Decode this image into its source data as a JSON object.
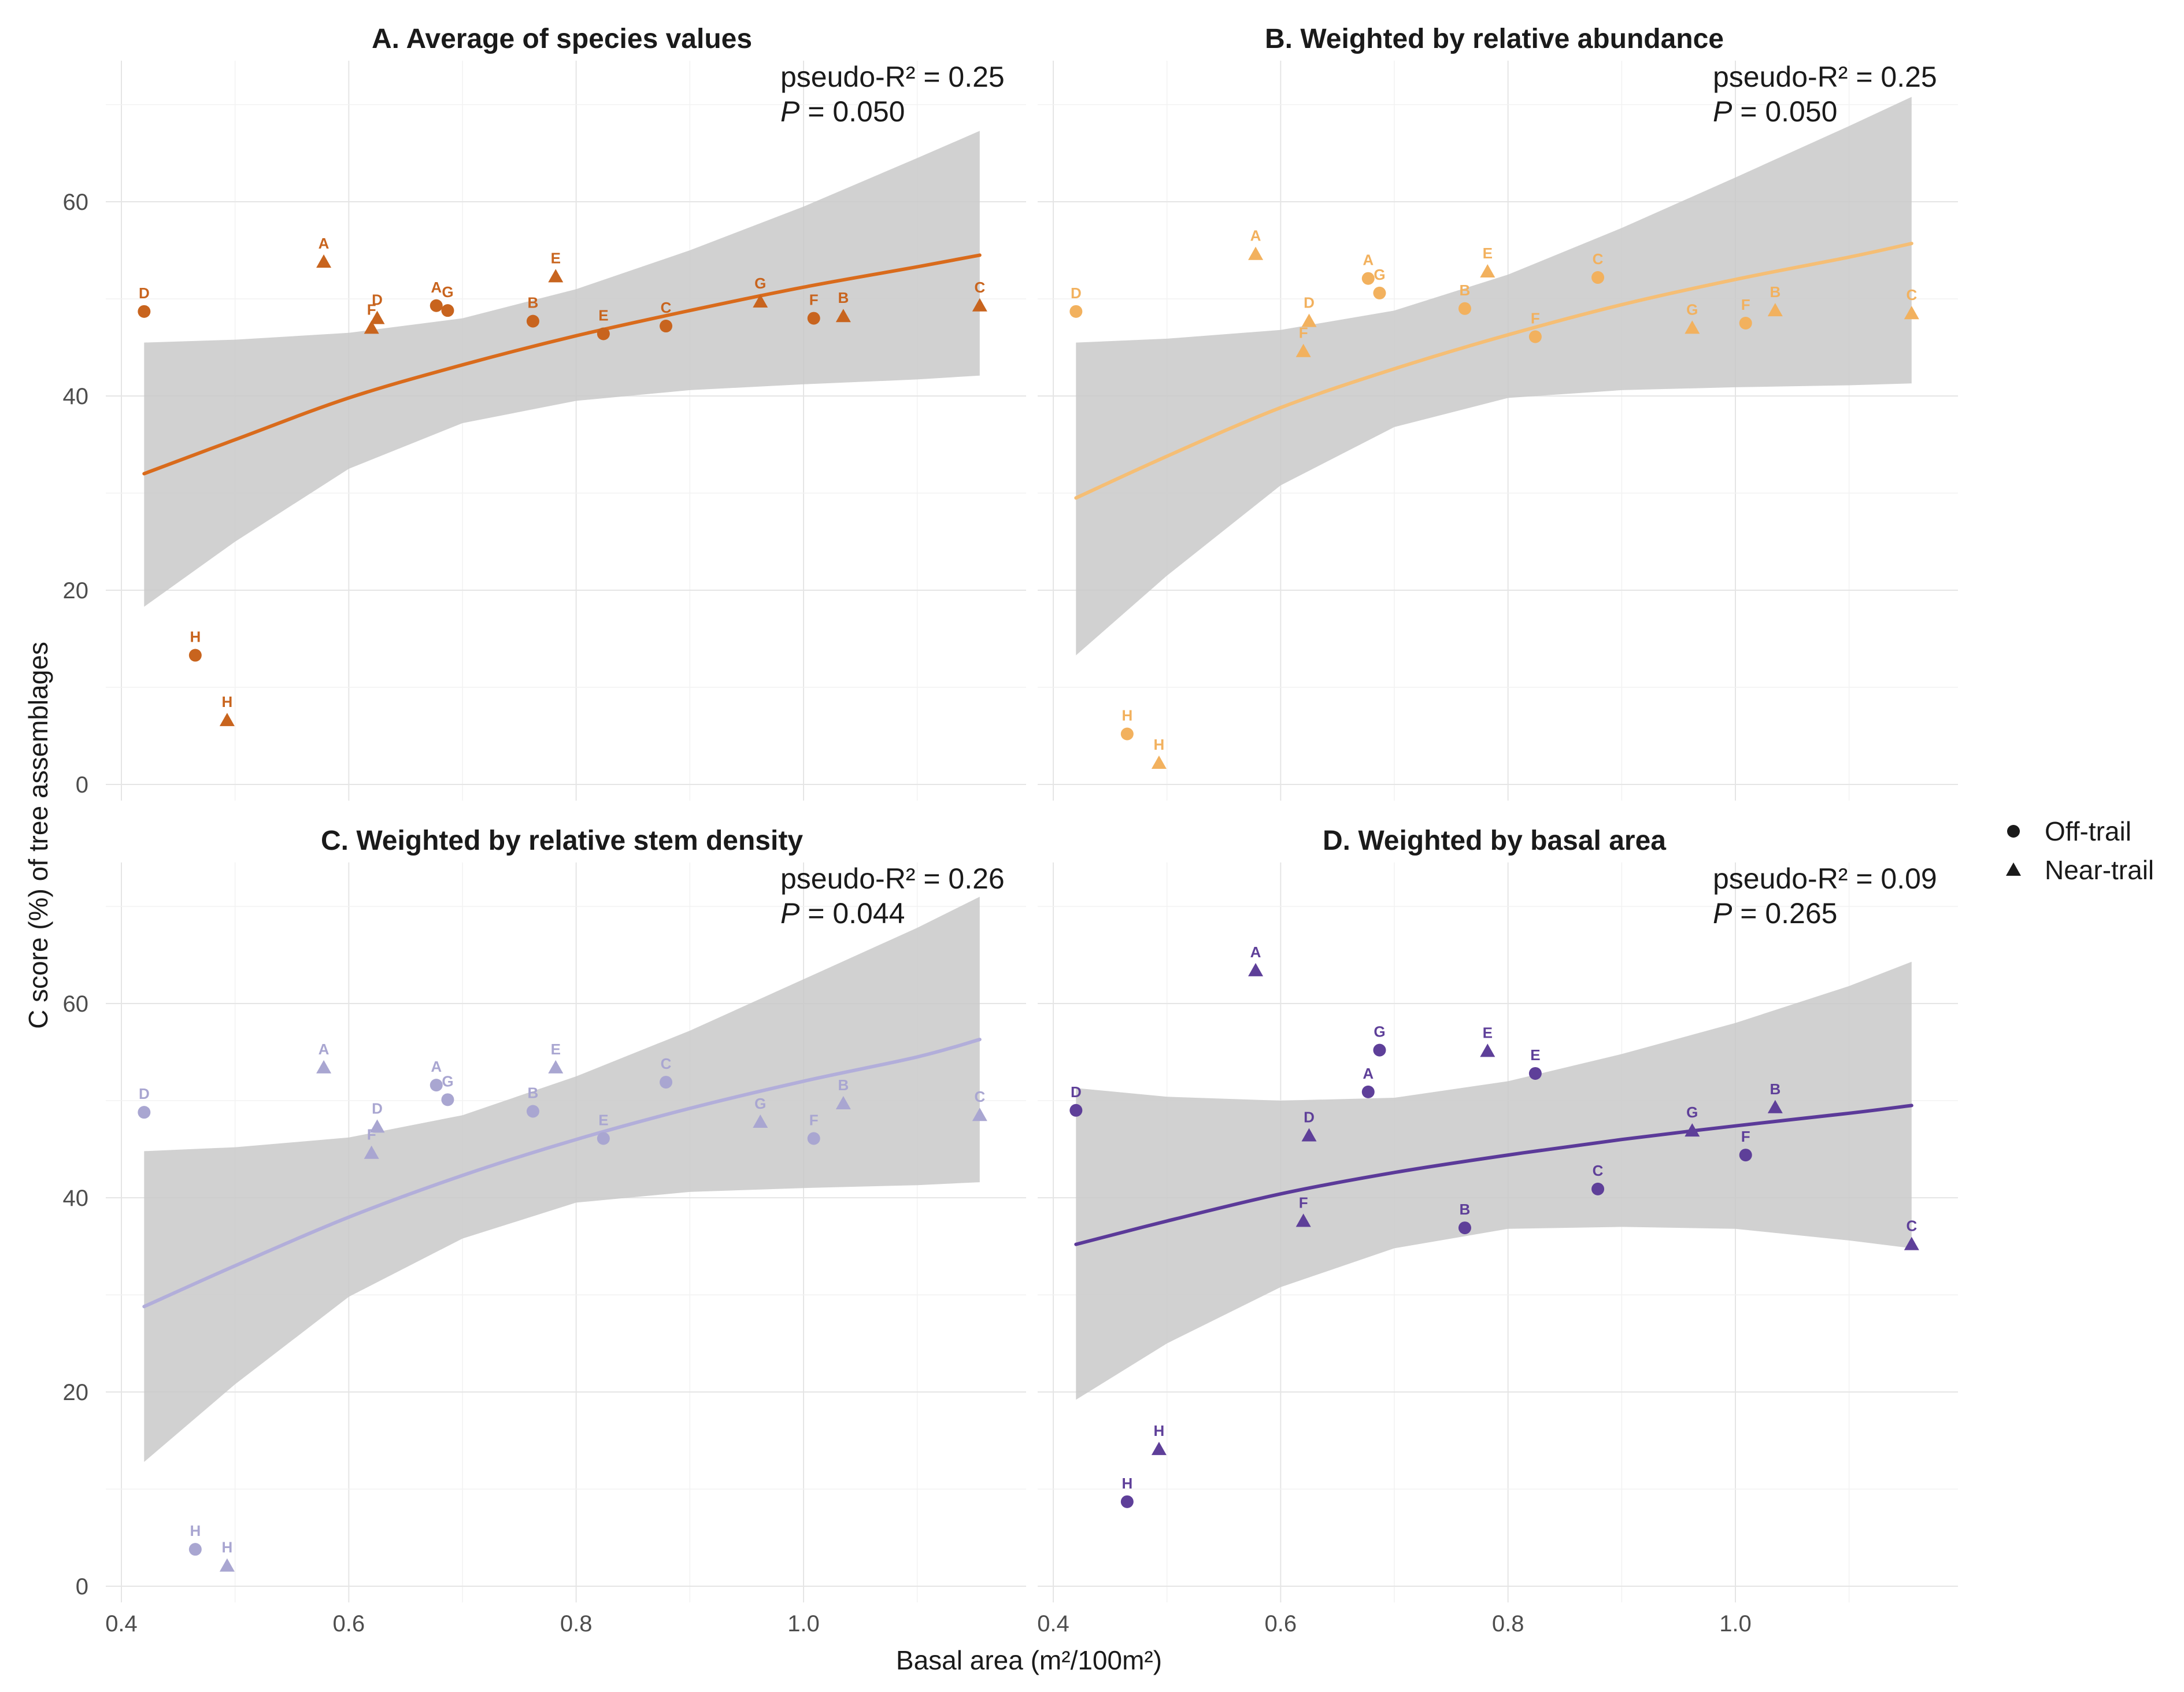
{
  "chart_data": {
    "type": "scatter",
    "xlabel": "Basal area (m²/100m²)",
    "ylabel": "C score (%) of tree assemblages",
    "xlim": [
      0.38,
      1.2
    ],
    "ylim": [
      -3,
      72
    ],
    "x_ticks": [
      "0.4",
      "0.6",
      "0.8",
      "1.0"
    ],
    "y_ticks": [
      "0",
      "20",
      "40",
      "60"
    ],
    "x_tick_values": [
      0.4,
      0.6,
      0.8,
      1.0
    ],
    "y_tick_values": [
      0,
      20,
      40,
      60
    ],
    "legend": {
      "position": "right",
      "items": [
        {
          "label": "Off-trail",
          "shape": "circle"
        },
        {
          "label": "Near-trail",
          "shape": "triangle"
        }
      ]
    },
    "panels": [
      {
        "title": "A. Average of species values",
        "r2_text": "pseudo-R² = 0.25",
        "p_label": "P",
        "p_value": " = 0.050",
        "color": "#C8641E",
        "line_color": "#D96B1C",
        "fit": [
          [
            0.42,
            32
          ],
          [
            0.5,
            35.5
          ],
          [
            0.6,
            39.8
          ],
          [
            0.7,
            43.2
          ],
          [
            0.8,
            46.2
          ],
          [
            0.9,
            48.8
          ],
          [
            1.0,
            51.2
          ],
          [
            1.1,
            53.3
          ],
          [
            1.155,
            54.5
          ]
        ],
        "band_upper": [
          [
            0.42,
            45.5
          ],
          [
            0.5,
            45.8
          ],
          [
            0.6,
            46.5
          ],
          [
            0.7,
            48.0
          ],
          [
            0.8,
            51.0
          ],
          [
            0.9,
            55.0
          ],
          [
            1.0,
            59.5
          ],
          [
            1.1,
            64.5
          ],
          [
            1.155,
            67.3
          ]
        ],
        "band_lower": [
          [
            0.42,
            18.3
          ],
          [
            0.5,
            25.0
          ],
          [
            0.6,
            32.5
          ],
          [
            0.7,
            37.2
          ],
          [
            0.8,
            39.5
          ],
          [
            0.9,
            40.6
          ],
          [
            1.0,
            41.2
          ],
          [
            1.1,
            41.7
          ],
          [
            1.155,
            42.1
          ]
        ],
        "points": [
          {
            "label": "D",
            "x": 0.42,
            "y": 48.7,
            "shape": "circle"
          },
          {
            "label": "A",
            "x": 0.578,
            "y": 53.8,
            "shape": "triangle"
          },
          {
            "label": "D",
            "x": 0.625,
            "y": 48.0,
            "shape": "triangle"
          },
          {
            "label": "F",
            "x": 0.62,
            "y": 47.0,
            "shape": "triangle"
          },
          {
            "label": "A",
            "x": 0.677,
            "y": 49.3,
            "shape": "circle"
          },
          {
            "label": "G",
            "x": 0.687,
            "y": 48.8,
            "shape": "circle"
          },
          {
            "label": "B",
            "x": 0.762,
            "y": 47.7,
            "shape": "circle"
          },
          {
            "label": "E",
            "x": 0.782,
            "y": 52.3,
            "shape": "triangle"
          },
          {
            "label": "E",
            "x": 0.824,
            "y": 46.4,
            "shape": "circle"
          },
          {
            "label": "C",
            "x": 0.879,
            "y": 47.2,
            "shape": "circle"
          },
          {
            "label": "G",
            "x": 0.962,
            "y": 49.7,
            "shape": "triangle"
          },
          {
            "label": "F",
            "x": 1.009,
            "y": 48.0,
            "shape": "circle"
          },
          {
            "label": "B",
            "x": 1.035,
            "y": 48.2,
            "shape": "triangle"
          },
          {
            "label": "C",
            "x": 1.155,
            "y": 49.3,
            "shape": "triangle"
          },
          {
            "label": "H",
            "x": 0.465,
            "y": 13.3,
            "shape": "circle"
          },
          {
            "label": "H",
            "x": 0.493,
            "y": 6.6,
            "shape": "triangle"
          }
        ]
      },
      {
        "title": "B. Weighted by relative abundance",
        "r2_text": "pseudo-R² = 0.25",
        "p_label": "P",
        "p_value": " = 0.050",
        "color": "#F2B15E",
        "line_color": "#F5BE75",
        "fit": [
          [
            0.42,
            29.5
          ],
          [
            0.5,
            33.8
          ],
          [
            0.6,
            38.8
          ],
          [
            0.7,
            42.8
          ],
          [
            0.8,
            46.3
          ],
          [
            0.9,
            49.4
          ],
          [
            1.0,
            52.0
          ],
          [
            1.1,
            54.3
          ],
          [
            1.155,
            55.7
          ]
        ],
        "band_upper": [
          [
            0.42,
            45.5
          ],
          [
            0.5,
            45.9
          ],
          [
            0.6,
            46.8
          ],
          [
            0.7,
            48.8
          ],
          [
            0.8,
            52.5
          ],
          [
            0.9,
            57.3
          ],
          [
            1.0,
            62.5
          ],
          [
            1.1,
            67.8
          ],
          [
            1.155,
            70.8
          ]
        ],
        "band_lower": [
          [
            0.42,
            13.3
          ],
          [
            0.5,
            21.5
          ],
          [
            0.6,
            30.8
          ],
          [
            0.7,
            36.8
          ],
          [
            0.8,
            39.8
          ],
          [
            0.9,
            40.6
          ],
          [
            1.0,
            40.9
          ],
          [
            1.1,
            41.1
          ],
          [
            1.155,
            41.3
          ]
        ],
        "points": [
          {
            "label": "D",
            "x": 0.42,
            "y": 48.7,
            "shape": "circle"
          },
          {
            "label": "A",
            "x": 0.578,
            "y": 54.6,
            "shape": "triangle"
          },
          {
            "label": "D",
            "x": 0.625,
            "y": 47.7,
            "shape": "triangle"
          },
          {
            "label": "F",
            "x": 0.62,
            "y": 44.6,
            "shape": "triangle"
          },
          {
            "label": "A",
            "x": 0.677,
            "y": 52.1,
            "shape": "circle"
          },
          {
            "label": "G",
            "x": 0.687,
            "y": 50.6,
            "shape": "circle"
          },
          {
            "label": "B",
            "x": 0.762,
            "y": 49.0,
            "shape": "circle"
          },
          {
            "label": "E",
            "x": 0.782,
            "y": 52.8,
            "shape": "triangle"
          },
          {
            "label": "F",
            "x": 0.824,
            "y": 46.1,
            "shape": "circle"
          },
          {
            "label": "C",
            "x": 0.879,
            "y": 52.2,
            "shape": "circle"
          },
          {
            "label": "G",
            "x": 0.962,
            "y": 47.0,
            "shape": "triangle"
          },
          {
            "label": "F",
            "x": 1.009,
            "y": 47.5,
            "shape": "circle"
          },
          {
            "label": "B",
            "x": 1.035,
            "y": 48.8,
            "shape": "triangle"
          },
          {
            "label": "C",
            "x": 1.155,
            "y": 48.5,
            "shape": "triangle"
          },
          {
            "label": "H",
            "x": 0.465,
            "y": 5.2,
            "shape": "circle"
          },
          {
            "label": "H",
            "x": 0.493,
            "y": 2.2,
            "shape": "triangle"
          }
        ]
      },
      {
        "title": "C. Weighted by relative stem density",
        "r2_text": "pseudo-R² = 0.26",
        "p_label": "P",
        "p_value": " = 0.044",
        "color": "#A9A6D1",
        "line_color": "#B2AEDA",
        "fit": [
          [
            0.42,
            28.8
          ],
          [
            0.5,
            33.0
          ],
          [
            0.6,
            38.0
          ],
          [
            0.7,
            42.3
          ],
          [
            0.8,
            46.0
          ],
          [
            0.9,
            49.2
          ],
          [
            1.0,
            52.0
          ],
          [
            1.1,
            54.5
          ],
          [
            1.155,
            56.3
          ]
        ],
        "band_upper": [
          [
            0.42,
            44.8
          ],
          [
            0.5,
            45.2
          ],
          [
            0.6,
            46.2
          ],
          [
            0.7,
            48.5
          ],
          [
            0.8,
            52.5
          ],
          [
            0.9,
            57.2
          ],
          [
            1.0,
            62.5
          ],
          [
            1.1,
            67.8
          ],
          [
            1.155,
            71.0
          ]
        ],
        "band_lower": [
          [
            0.42,
            12.8
          ],
          [
            0.5,
            20.8
          ],
          [
            0.6,
            29.8
          ],
          [
            0.7,
            35.8
          ],
          [
            0.8,
            39.5
          ],
          [
            0.9,
            40.6
          ],
          [
            1.0,
            41.0
          ],
          [
            1.1,
            41.3
          ],
          [
            1.155,
            41.6
          ]
        ],
        "points": [
          {
            "label": "D",
            "x": 0.42,
            "y": 48.8,
            "shape": "circle"
          },
          {
            "label": "A",
            "x": 0.578,
            "y": 53.4,
            "shape": "triangle"
          },
          {
            "label": "D",
            "x": 0.625,
            "y": 47.3,
            "shape": "triangle"
          },
          {
            "label": "F",
            "x": 0.62,
            "y": 44.6,
            "shape": "triangle"
          },
          {
            "label": "A",
            "x": 0.677,
            "y": 51.6,
            "shape": "circle"
          },
          {
            "label": "G",
            "x": 0.687,
            "y": 50.1,
            "shape": "circle"
          },
          {
            "label": "B",
            "x": 0.762,
            "y": 48.9,
            "shape": "circle"
          },
          {
            "label": "E",
            "x": 0.782,
            "y": 53.4,
            "shape": "triangle"
          },
          {
            "label": "E",
            "x": 0.824,
            "y": 46.1,
            "shape": "circle"
          },
          {
            "label": "C",
            "x": 0.879,
            "y": 51.9,
            "shape": "circle"
          },
          {
            "label": "G",
            "x": 0.962,
            "y": 47.8,
            "shape": "triangle"
          },
          {
            "label": "F",
            "x": 1.009,
            "y": 46.1,
            "shape": "circle"
          },
          {
            "label": "B",
            "x": 1.035,
            "y": 49.7,
            "shape": "triangle"
          },
          {
            "label": "C",
            "x": 1.155,
            "y": 48.5,
            "shape": "triangle"
          },
          {
            "label": "H",
            "x": 0.465,
            "y": 3.8,
            "shape": "circle"
          },
          {
            "label": "H",
            "x": 0.493,
            "y": 2.1,
            "shape": "triangle"
          }
        ]
      },
      {
        "title": "D. Weighted by basal area",
        "r2_text": "pseudo-R² = 0.09",
        "p_label": "P",
        "p_value": " = 0.265",
        "color": "#5E3F99",
        "line_color": "#5B3A99",
        "fit": [
          [
            0.42,
            35.2
          ],
          [
            0.5,
            37.6
          ],
          [
            0.6,
            40.4
          ],
          [
            0.7,
            42.6
          ],
          [
            0.8,
            44.4
          ],
          [
            0.9,
            46.0
          ],
          [
            1.0,
            47.4
          ],
          [
            1.1,
            48.7
          ],
          [
            1.155,
            49.5
          ]
        ],
        "band_upper": [
          [
            0.42,
            51.3
          ],
          [
            0.5,
            50.4
          ],
          [
            0.6,
            50.0
          ],
          [
            0.7,
            50.3
          ],
          [
            0.8,
            52.0
          ],
          [
            0.9,
            54.8
          ],
          [
            1.0,
            58.0
          ],
          [
            1.1,
            61.8
          ],
          [
            1.155,
            64.3
          ]
        ],
        "band_lower": [
          [
            0.42,
            19.2
          ],
          [
            0.5,
            25.0
          ],
          [
            0.6,
            30.8
          ],
          [
            0.7,
            34.8
          ],
          [
            0.8,
            36.8
          ],
          [
            0.9,
            37.0
          ],
          [
            1.0,
            36.8
          ],
          [
            1.1,
            35.6
          ],
          [
            1.155,
            34.8
          ]
        ],
        "points": [
          {
            "label": "D",
            "x": 0.42,
            "y": 49.0,
            "shape": "circle"
          },
          {
            "label": "A",
            "x": 0.578,
            "y": 63.4,
            "shape": "triangle"
          },
          {
            "label": "D",
            "x": 0.625,
            "y": 46.4,
            "shape": "triangle"
          },
          {
            "label": "F",
            "x": 0.62,
            "y": 37.6,
            "shape": "triangle"
          },
          {
            "label": "A",
            "x": 0.677,
            "y": 50.9,
            "shape": "circle"
          },
          {
            "label": "G",
            "x": 0.687,
            "y": 55.2,
            "shape": "circle"
          },
          {
            "label": "B",
            "x": 0.762,
            "y": 36.9,
            "shape": "circle"
          },
          {
            "label": "E",
            "x": 0.782,
            "y": 55.1,
            "shape": "triangle"
          },
          {
            "label": "E",
            "x": 0.824,
            "y": 52.8,
            "shape": "circle"
          },
          {
            "label": "C",
            "x": 0.879,
            "y": 40.9,
            "shape": "circle"
          },
          {
            "label": "G",
            "x": 0.962,
            "y": 46.9,
            "shape": "triangle"
          },
          {
            "label": "F",
            "x": 1.009,
            "y": 44.4,
            "shape": "circle"
          },
          {
            "label": "B",
            "x": 1.035,
            "y": 49.3,
            "shape": "triangle"
          },
          {
            "label": "C",
            "x": 1.155,
            "y": 35.2,
            "shape": "triangle"
          },
          {
            "label": "H",
            "x": 0.465,
            "y": 8.7,
            "shape": "circle"
          },
          {
            "label": "H",
            "x": 0.493,
            "y": 14.1,
            "shape": "triangle"
          }
        ]
      }
    ]
  }
}
